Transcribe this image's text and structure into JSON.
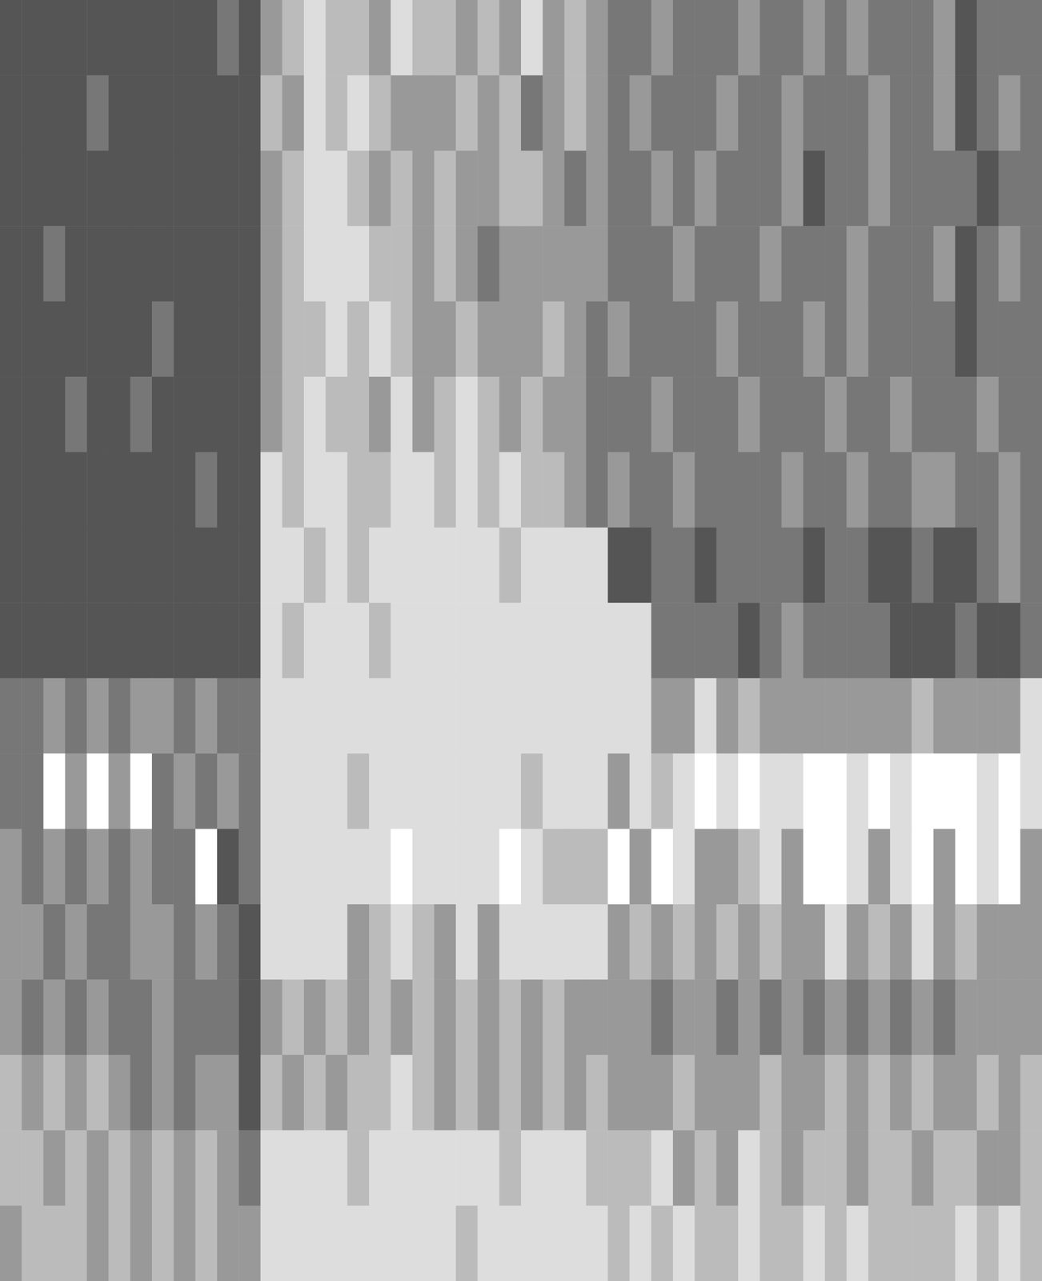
{
  "chart_data": {
    "type": "heatmap",
    "tick_labels": false,
    "zlim": [
      1,
      6
    ],
    "cells": [
      [
        1,
        1,
        1,
        1,
        1,
        1,
        1,
        1,
        1,
        1,
        2,
        1,
        3,
        4,
        5,
        4,
        4,
        3,
        5,
        4,
        4,
        3,
        4,
        3,
        5,
        3,
        4,
        3,
        2,
        2,
        3,
        2,
        2,
        2,
        3,
        2,
        2,
        3,
        2,
        3,
        2,
        2,
        2,
        3,
        1,
        2,
        2,
        2
      ],
      [
        1,
        1,
        1,
        1,
        2,
        1,
        1,
        1,
        1,
        1,
        1,
        1,
        4,
        3,
        5,
        4,
        5,
        4,
        3,
        3,
        3,
        4,
        3,
        4,
        2,
        3,
        4,
        3,
        2,
        3,
        2,
        2,
        2,
        3,
        2,
        2,
        3,
        2,
        2,
        2,
        3,
        2,
        2,
        3,
        1,
        2,
        3,
        2
      ],
      [
        1,
        1,
        1,
        1,
        1,
        1,
        1,
        1,
        1,
        1,
        1,
        1,
        3,
        4,
        5,
        5,
        4,
        3,
        4,
        3,
        4,
        3,
        3,
        4,
        4,
        3,
        2,
        3,
        2,
        2,
        3,
        2,
        3,
        2,
        2,
        2,
        3,
        1,
        2,
        2,
        3,
        2,
        2,
        2,
        2,
        1,
        2,
        2
      ],
      [
        1,
        1,
        2,
        1,
        1,
        1,
        1,
        1,
        1,
        1,
        1,
        1,
        3,
        4,
        5,
        5,
        5,
        4,
        4,
        3,
        4,
        3,
        2,
        3,
        3,
        3,
        3,
        3,
        2,
        2,
        2,
        3,
        2,
        2,
        2,
        3,
        2,
        2,
        2,
        3,
        2,
        2,
        2,
        3,
        1,
        2,
        3,
        2
      ],
      [
        1,
        1,
        1,
        1,
        1,
        1,
        1,
        2,
        1,
        1,
        1,
        1,
        3,
        4,
        4,
        5,
        4,
        5,
        4,
        3,
        3,
        4,
        3,
        3,
        3,
        4,
        3,
        2,
        3,
        2,
        2,
        2,
        2,
        3,
        2,
        2,
        2,
        3,
        2,
        3,
        2,
        2,
        2,
        2,
        1,
        2,
        2,
        2
      ],
      [
        1,
        1,
        1,
        2,
        1,
        1,
        2,
        1,
        1,
        1,
        1,
        1,
        3,
        4,
        5,
        4,
        4,
        3,
        5,
        3,
        4,
        5,
        4,
        3,
        4,
        3,
        3,
        2,
        2,
        2,
        3,
        2,
        2,
        2,
        3,
        2,
        2,
        2,
        3,
        2,
        2,
        3,
        2,
        2,
        2,
        3,
        2,
        2
      ],
      [
        1,
        1,
        1,
        1,
        1,
        1,
        1,
        1,
        1,
        2,
        1,
        1,
        5,
        4,
        5,
        5,
        4,
        4,
        5,
        5,
        4,
        5,
        4,
        5,
        4,
        4,
        3,
        2,
        3,
        2,
        2,
        3,
        2,
        2,
        2,
        2,
        3,
        2,
        2,
        3,
        2,
        2,
        3,
        3,
        2,
        2,
        3,
        2
      ],
      [
        1,
        1,
        1,
        1,
        1,
        1,
        1,
        1,
        1,
        1,
        1,
        1,
        5,
        5,
        4,
        5,
        4,
        5,
        5,
        5,
        5,
        5,
        5,
        4,
        5,
        5,
        5,
        5,
        1,
        1,
        2,
        2,
        1,
        2,
        2,
        2,
        2,
        1,
        2,
        2,
        1,
        1,
        2,
        1,
        1,
        2,
        3,
        2
      ],
      [
        1,
        1,
        1,
        1,
        1,
        1,
        1,
        1,
        1,
        1,
        1,
        1,
        5,
        4,
        5,
        5,
        5,
        4,
        5,
        5,
        5,
        5,
        5,
        5,
        5,
        5,
        5,
        5,
        5,
        5,
        2,
        2,
        2,
        2,
        1,
        2,
        3,
        2,
        2,
        2,
        2,
        1,
        1,
        1,
        2,
        1,
        1,
        2
      ],
      [
        2,
        2,
        3,
        2,
        3,
        2,
        3,
        3,
        2,
        3,
        2,
        2,
        5,
        5,
        5,
        5,
        5,
        5,
        5,
        5,
        5,
        5,
        5,
        5,
        5,
        5,
        5,
        5,
        5,
        5,
        3,
        3,
        5,
        3,
        4,
        3,
        3,
        3,
        3,
        3,
        3,
        3,
        4,
        3,
        3,
        3,
        3,
        5
      ],
      [
        2,
        2,
        6,
        3,
        6,
        3,
        6,
        2,
        3,
        2,
        3,
        2,
        5,
        5,
        5,
        5,
        4,
        5,
        5,
        5,
        5,
        5,
        5,
        5,
        4,
        5,
        5,
        5,
        3,
        5,
        4,
        5,
        6,
        5,
        6,
        5,
        5,
        6,
        6,
        5,
        6,
        5,
        6,
        6,
        6,
        5,
        6,
        5
      ],
      [
        3,
        2,
        3,
        2,
        3,
        2,
        3,
        2,
        2,
        6,
        1,
        2,
        5,
        5,
        5,
        5,
        5,
        5,
        6,
        5,
        5,
        5,
        5,
        6,
        5,
        4,
        4,
        4,
        6,
        3,
        6,
        5,
        3,
        3,
        4,
        5,
        3,
        6,
        6,
        5,
        3,
        5,
        6,
        3,
        6,
        5,
        6,
        3
      ],
      [
        3,
        3,
        2,
        3,
        2,
        2,
        3,
        3,
        2,
        3,
        2,
        1,
        5,
        5,
        5,
        5,
        3,
        4,
        5,
        4,
        3,
        5,
        3,
        5,
        5,
        5,
        5,
        5,
        3,
        4,
        3,
        4,
        3,
        4,
        3,
        4,
        3,
        3,
        5,
        3,
        4,
        3,
        5,
        3,
        4,
        3,
        3,
        3
      ],
      [
        3,
        2,
        3,
        2,
        3,
        2,
        2,
        3,
        2,
        2,
        2,
        1,
        3,
        4,
        3,
        4,
        3,
        4,
        3,
        4,
        3,
        4,
        3,
        4,
        3,
        4,
        3,
        3,
        3,
        3,
        2,
        3,
        3,
        2,
        3,
        2,
        3,
        2,
        3,
        2,
        3,
        2,
        3,
        2,
        3,
        3,
        3,
        3
      ],
      [
        4,
        3,
        4,
        3,
        4,
        3,
        2,
        3,
        2,
        3,
        3,
        1,
        4,
        3,
        4,
        3,
        4,
        4,
        5,
        4,
        3,
        4,
        3,
        4,
        3,
        4,
        3,
        4,
        3,
        3,
        3,
        4,
        3,
        3,
        3,
        4,
        3,
        3,
        4,
        3,
        4,
        3,
        4,
        3,
        3,
        4,
        3,
        4
      ],
      [
        4,
        4,
        3,
        4,
        3,
        4,
        3,
        4,
        3,
        4,
        3,
        2,
        5,
        5,
        5,
        5,
        4,
        5,
        5,
        5,
        5,
        5,
        5,
        4,
        5,
        5,
        5,
        4,
        4,
        4,
        5,
        3,
        4,
        3,
        5,
        4,
        3,
        4,
        4,
        3,
        4,
        4,
        3,
        4,
        4,
        3,
        3,
        4
      ],
      [
        3,
        4,
        4,
        4,
        3,
        4,
        3,
        4,
        3,
        4,
        3,
        3,
        5,
        5,
        5,
        5,
        5,
        5,
        5,
        5,
        5,
        4,
        5,
        5,
        5,
        5,
        5,
        5,
        4,
        5,
        4,
        5,
        4,
        4,
        5,
        4,
        4,
        5,
        4,
        5,
        4,
        4,
        4,
        4,
        5,
        4,
        5,
        4
      ]
    ]
  }
}
